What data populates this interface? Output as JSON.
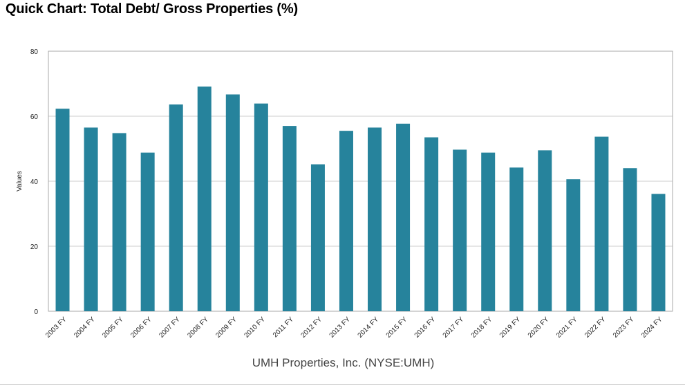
{
  "title": "Quick Chart: Total Debt/ Gross Properties (%)",
  "colors": {
    "bar": "#26839c",
    "grid": "#cccccc",
    "axis": "#aaaaaa"
  },
  "chart_data": {
    "type": "bar",
    "title": "Quick Chart: Total Debt/ Gross Properties (%)",
    "xlabel": "UMH Properties, Inc. (NYSE:UMH)",
    "ylabel": "Values",
    "ylim": [
      0,
      80
    ],
    "yticks": [
      0,
      20,
      40,
      60,
      80
    ],
    "grid": true,
    "categories": [
      "2003 FY",
      "2004 FY",
      "2005 FY",
      "2006 FY",
      "2007 FY",
      "2008 FY",
      "2009 FY",
      "2010 FY",
      "2011 FY",
      "2012 FY",
      "2013 FY",
      "2014 FY",
      "2015 FY",
      "2016 FY",
      "2017 FY",
      "2018 FY",
      "2019 FY",
      "2020 FY",
      "2021 FY",
      "2022 FY",
      "2023 FY",
      "2024 FY"
    ],
    "values": [
      62.3,
      56.5,
      54.8,
      48.8,
      63.6,
      69.1,
      66.7,
      63.9,
      57.0,
      45.2,
      55.5,
      56.5,
      57.7,
      53.5,
      49.7,
      48.8,
      44.2,
      49.5,
      40.6,
      53.7,
      44.0,
      36.1
    ]
  }
}
